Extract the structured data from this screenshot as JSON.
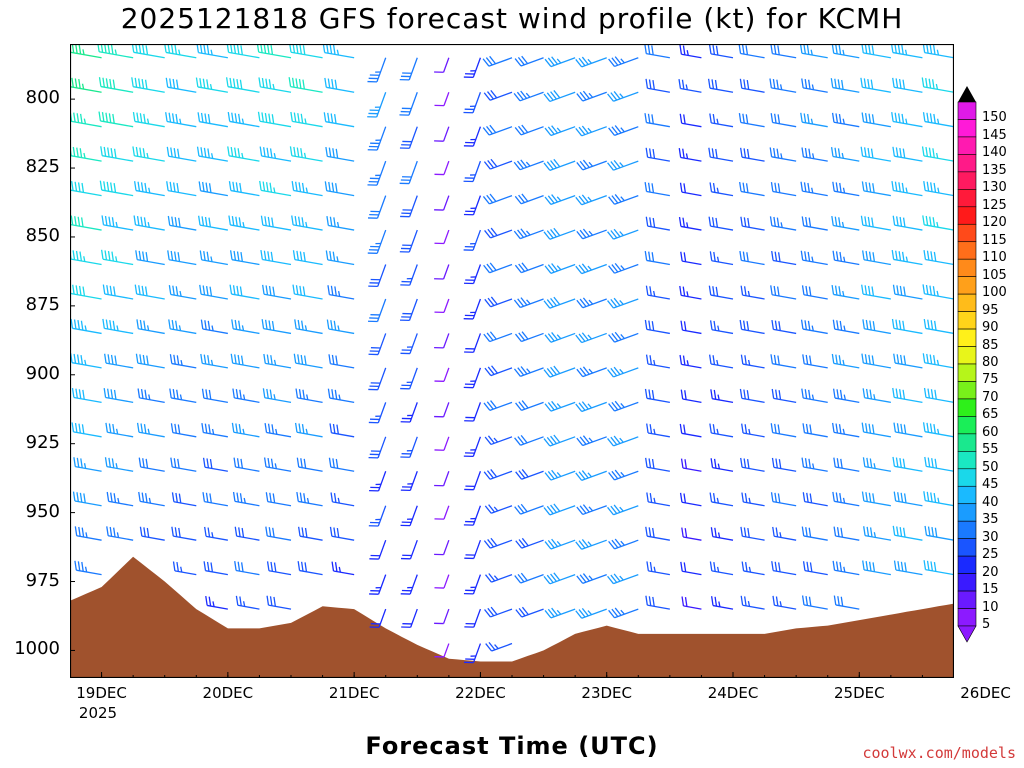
{
  "chart_data": {
    "type": "wind-barb-profile",
    "title": "2025121818 GFS forecast wind profile (kt) for KCMH",
    "xlabel": "Forecast Time (UTC)",
    "credit": "coolwx.com/models",
    "y_levels_hpa": [
      800,
      825,
      850,
      875,
      900,
      925,
      950,
      975,
      1000
    ],
    "y_range_hpa": [
      780,
      1010
    ],
    "x_ticks": [
      "19DEC",
      "20DEC",
      "21DEC",
      "22DEC",
      "23DEC",
      "24DEC",
      "25DEC",
      "26DEC"
    ],
    "x_year": "2025",
    "x_range_hours": [
      0,
      168
    ],
    "colorbar": {
      "unit": "kt",
      "values": [
        5,
        10,
        15,
        20,
        25,
        30,
        35,
        40,
        45,
        50,
        55,
        60,
        65,
        70,
        75,
        80,
        85,
        90,
        95,
        100,
        105,
        110,
        115,
        120,
        125,
        130,
        135,
        140,
        145,
        150
      ],
      "labels": [
        "5",
        "10",
        "15",
        "20",
        "25",
        "30",
        "35",
        "40",
        "45",
        "50",
        "55",
        "60",
        "65",
        "70",
        "75",
        "80",
        "85",
        "90",
        "95",
        "100",
        "105",
        "110",
        "115",
        "120",
        "125",
        "130",
        "135",
        "140",
        "145",
        "150"
      ],
      "colors": [
        "#8c1aff",
        "#6a1aff",
        "#3a1aff",
        "#1a2aff",
        "#1a55ff",
        "#1a7aff",
        "#1a9cff",
        "#1abaff",
        "#1ad8ea",
        "#1ae8c2",
        "#1ae88e",
        "#1aee58",
        "#2ef01a",
        "#78f01a",
        "#b6f51a",
        "#e8f51a",
        "#fff01a",
        "#ffd41a",
        "#ffbc1a",
        "#ffa01a",
        "#ff8a1a",
        "#ff6e1a",
        "#ff4a1a",
        "#ff1a1a",
        "#ff1a3a",
        "#ff1a60",
        "#ff1a88",
        "#ff1ab0",
        "#ff1ad8",
        "#e01ae8"
      ]
    },
    "terrain_color": "#a0522d",
    "terrain_surface_pressure": {
      "hours": [
        0,
        6,
        12,
        18,
        24,
        30,
        36,
        42,
        48,
        54,
        60,
        66,
        72,
        78,
        84,
        90,
        96,
        102,
        108,
        114,
        120,
        126,
        132,
        138,
        144,
        150,
        156,
        162,
        168
      ],
      "hpa": [
        982,
        977,
        966,
        975,
        985,
        992,
        992,
        990,
        984,
        985,
        992,
        998,
        1003,
        1004,
        1004,
        1000,
        994,
        991,
        994,
        994,
        994,
        994,
        994,
        992,
        991,
        989,
        987,
        985,
        983
      ]
    },
    "wind_speed_kt": {
      "hours": [
        0,
        24,
        48,
        66,
        72,
        80,
        96,
        108,
        120,
        144,
        168
      ],
      "low_levels": [
        30,
        25,
        25,
        20,
        10,
        25,
        35,
        35,
        20,
        30,
        40
      ],
      "high_levels": [
        60,
        45,
        50,
        30,
        10,
        30,
        35,
        35,
        25,
        35,
        45
      ]
    }
  }
}
